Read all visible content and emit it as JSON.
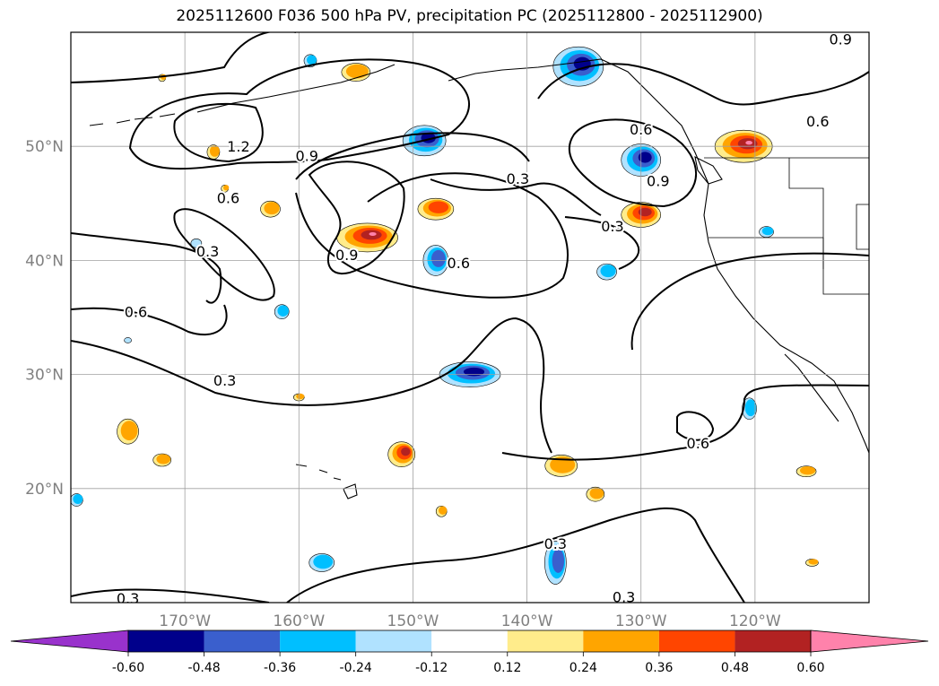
{
  "title": "2025112600 F036 500 hPa PV, precipitation PC (2025112800 - 2025112900)",
  "axes": {
    "lat_labels": [
      "20°N",
      "30°N",
      "40°N",
      "50°N"
    ],
    "lon_labels": [
      "170°W",
      "160°W",
      "150°W",
      "140°W",
      "130°W",
      "120°W"
    ],
    "extent": {
      "lon_min": -180,
      "lon_max": -110,
      "lat_min": 10,
      "lat_max": 60
    },
    "grid": true
  },
  "pv_contours": {
    "color": "#000000",
    "labels": [
      {
        "text": "1.2",
        "lon": -165.3,
        "lat": 50.0
      },
      {
        "text": "0.9",
        "lon": -159.3,
        "lat": 49.2
      },
      {
        "text": "0.9",
        "lon": -155.8,
        "lat": 40.5
      },
      {
        "text": "0.9",
        "lon": -128.5,
        "lat": 47.0
      },
      {
        "text": "0.9",
        "lon": -112.5,
        "lat": 59.4
      },
      {
        "text": "0.6",
        "lon": -166.2,
        "lat": 45.5
      },
      {
        "text": "0.6",
        "lon": -146.0,
        "lat": 39.8
      },
      {
        "text": "0.6",
        "lon": -130.0,
        "lat": 51.5
      },
      {
        "text": "0.6",
        "lon": -114.5,
        "lat": 52.2
      },
      {
        "text": "0.6",
        "lon": -174.3,
        "lat": 35.5
      },
      {
        "text": "0.6",
        "lon": -125.0,
        "lat": 24.0
      },
      {
        "text": "0.3",
        "lon": -140.8,
        "lat": 47.2
      },
      {
        "text": "0.3",
        "lon": -132.5,
        "lat": 43.0
      },
      {
        "text": "0.3",
        "lon": -168.0,
        "lat": 40.8
      },
      {
        "text": "0.3",
        "lon": -166.5,
        "lat": 29.5
      },
      {
        "text": "0.3",
        "lon": -137.5,
        "lat": 15.2
      },
      {
        "text": "0.3",
        "lon": -131.5,
        "lat": 10.5
      },
      {
        "text": "0.3",
        "lon": -175.0,
        "lat": 10.4
      }
    ]
  },
  "colorbar": {
    "bounds": [
      "-0.60",
      "-0.48",
      "-0.36",
      "-0.24",
      "-0.12",
      "0.12",
      "0.24",
      "0.36",
      "0.48",
      "0.60"
    ],
    "colors": [
      "#9932cc",
      "#00008b",
      "#3a5fcd",
      "#00bfff",
      "#b0e2ff",
      "#ffffff",
      "#ffec8b",
      "#ffa500",
      "#ff4500",
      "#b22222",
      "#ff82ab"
    ],
    "extend": "both"
  }
}
